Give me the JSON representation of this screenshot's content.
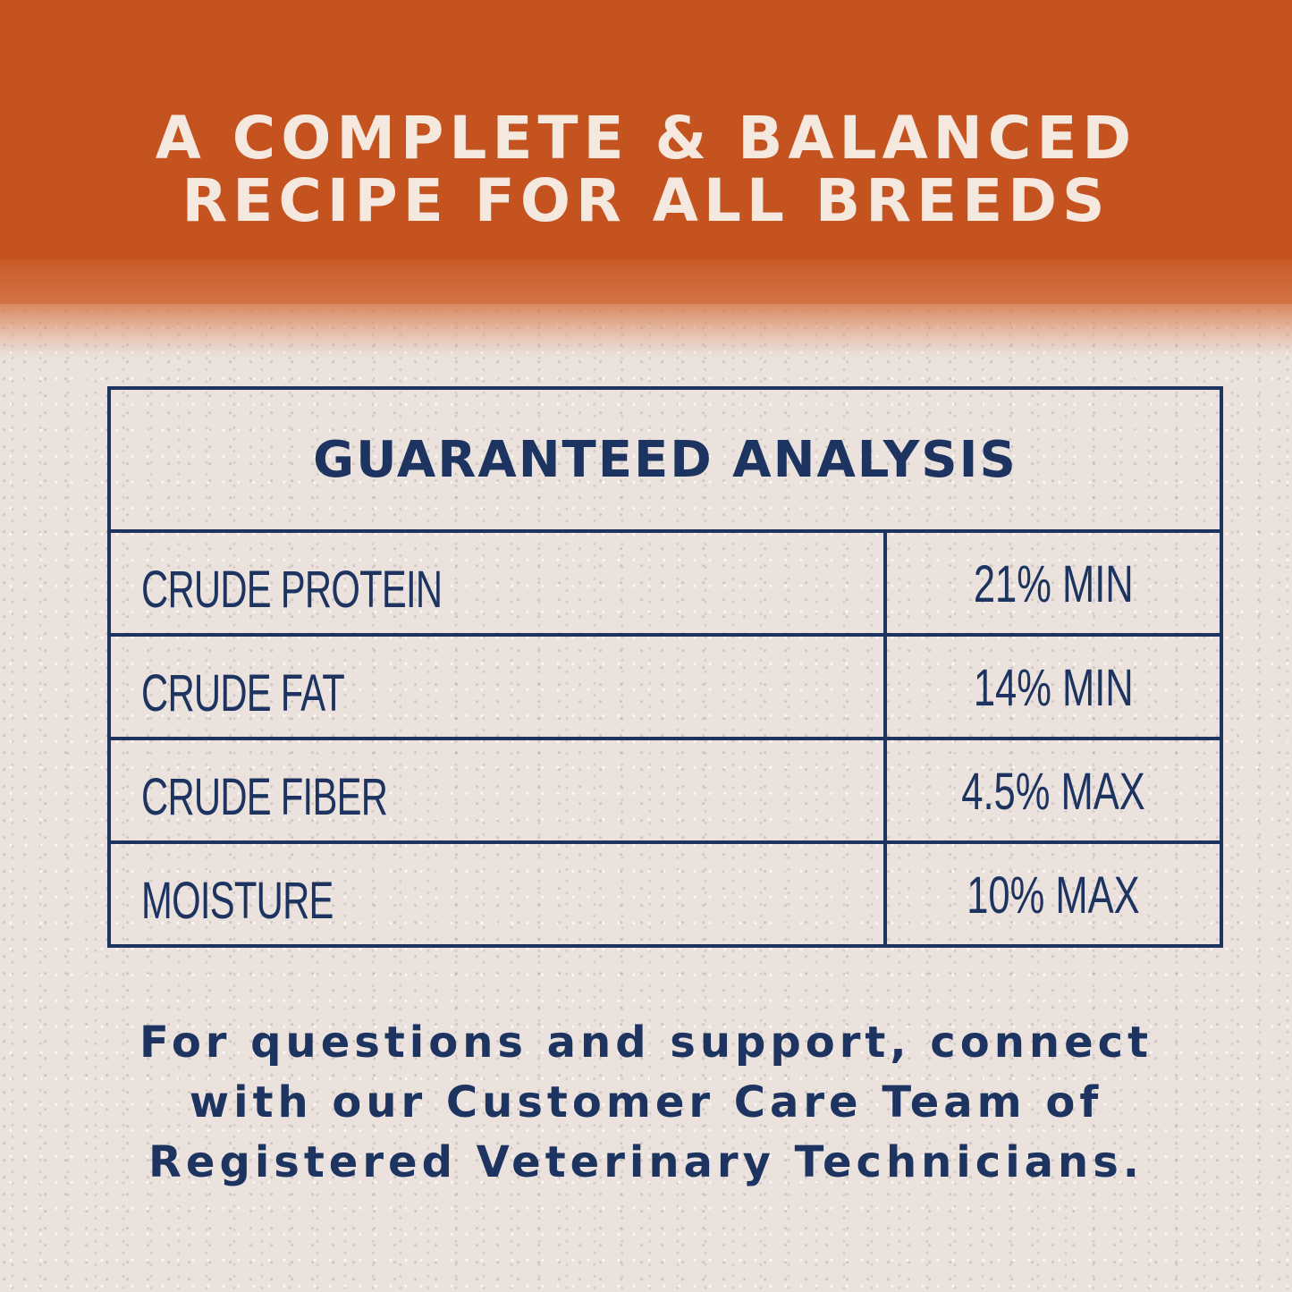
{
  "headline": {
    "line1": "A COMPLETE & BALANCED",
    "line2": "RECIPE FOR ALL BREEDS"
  },
  "analysis": {
    "title": "GUARANTEED ANALYSIS",
    "rows": [
      {
        "label": "CRUDE PROTEIN",
        "value": "21% MIN"
      },
      {
        "label": "CRUDE FAT",
        "value": "14% MIN"
      },
      {
        "label": "CRUDE FIBER",
        "value": "4.5% MAX"
      },
      {
        "label": "MOISTURE",
        "value": "10% MAX"
      }
    ]
  },
  "footer": {
    "line1": "For questions and support, connect",
    "line2": "with our Customer Care Team of",
    "line3": "Registered Veterinary Technicians."
  },
  "colors": {
    "band": "#c4531f",
    "headline_text": "#f4e8df",
    "navy": "#1d3461",
    "background": "#ebe2dd"
  }
}
